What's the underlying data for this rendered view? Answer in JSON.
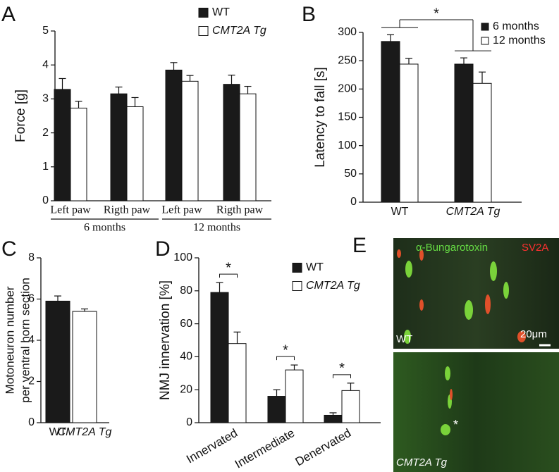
{
  "panels": [
    "A",
    "B",
    "C",
    "D",
    "E"
  ],
  "chart_data": [
    {
      "type": "bar",
      "ylabel": "Force [g]",
      "categories": [
        "Left paw",
        "Rigth paw",
        "Left paw",
        "Rigth paw"
      ],
      "groups": [
        "6 months",
        "12 months"
      ],
      "series": [
        {
          "name": "WT",
          "color": "#1a1a1a",
          "values": [
            3.28,
            3.15,
            3.85,
            3.43
          ],
          "errors": [
            0.32,
            0.2,
            0.22,
            0.27
          ]
        },
        {
          "name": "CMT2A Tg",
          "color": "#ffffff",
          "values": [
            2.73,
            2.77,
            3.52,
            3.15
          ],
          "errors": [
            0.2,
            0.27,
            0.17,
            0.22
          ]
        }
      ],
      "ylim": [
        0,
        5
      ],
      "yticks": [
        0,
        1,
        2,
        3,
        4,
        5
      ]
    },
    {
      "type": "bar",
      "ylabel": "Latency to fall [s]",
      "categories": [
        "WT",
        "CMT2A Tg"
      ],
      "series": [
        {
          "name": "6 months",
          "color": "#1a1a1a",
          "values": [
            284,
            244
          ],
          "errors": [
            12,
            11
          ]
        },
        {
          "name": "12 months",
          "color": "#ffffff",
          "values": [
            244,
            210
          ],
          "errors": [
            10,
            20
          ]
        }
      ],
      "ylim": [
        0,
        300
      ],
      "yticks": [
        0,
        50,
        100,
        150,
        200,
        250,
        300
      ],
      "annotations": [
        "*"
      ]
    },
    {
      "type": "bar",
      "ylabel": [
        "Motoneuron number",
        "per ventral horn section"
      ],
      "categories": [
        "WT",
        "CMT2A Tg"
      ],
      "values": [
        5.9,
        5.4
      ],
      "errors": [
        0.25,
        0.12
      ],
      "colors": [
        "#1a1a1a",
        "#ffffff"
      ],
      "ylim": [
        0,
        8
      ],
      "yticks": [
        0,
        2,
        4,
        6,
        8
      ]
    },
    {
      "type": "bar",
      "ylabel": "NMJ innervation [%]",
      "categories": [
        "Innervated",
        "Intermediate",
        "Denervated"
      ],
      "series": [
        {
          "name": "WT",
          "color": "#1a1a1a",
          "values": [
            79,
            16,
            4.5
          ],
          "errors": [
            6,
            4,
            1.5
          ]
        },
        {
          "name": "CMT2A Tg",
          "color": "#ffffff",
          "values": [
            48,
            32,
            19.5
          ],
          "errors": [
            7,
            3,
            4.5
          ]
        }
      ],
      "ylim": [
        0,
        100
      ],
      "yticks": [
        0,
        20,
        40,
        60,
        80,
        100
      ],
      "annotations": [
        "*",
        "*",
        "*"
      ]
    }
  ],
  "panel_e": {
    "stain_1": "α-Bungarotoxin",
    "stain_2": "SV2A",
    "scale": "20μm",
    "top_label": "WT",
    "bottom_label": "CMT2A Tg",
    "marker": "*"
  }
}
